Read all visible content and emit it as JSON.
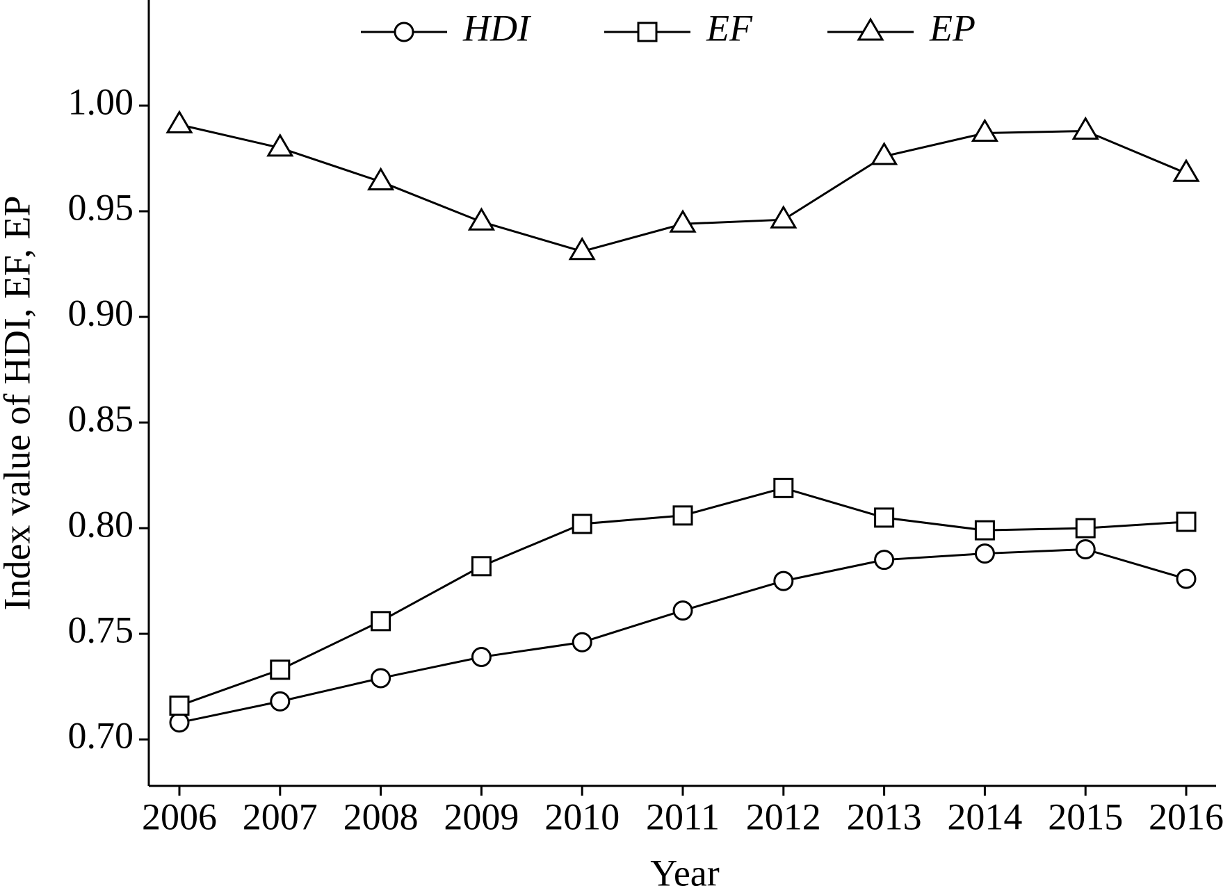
{
  "chart_data": {
    "type": "line",
    "categories": [
      "2006",
      "2007",
      "2008",
      "2009",
      "2010",
      "2011",
      "2012",
      "2013",
      "2014",
      "2015",
      "2016"
    ],
    "series": [
      {
        "name": "HDI",
        "color": "#000000",
        "marker": "circle",
        "values": [
          0.708,
          0.718,
          0.729,
          0.739,
          0.746,
          0.761,
          0.775,
          0.785,
          0.788,
          0.79,
          0.776
        ]
      },
      {
        "name": "EF",
        "color": "#000000",
        "marker": "square",
        "values": [
          0.716,
          0.733,
          0.756,
          0.782,
          0.802,
          0.806,
          0.819,
          0.805,
          0.799,
          0.8,
          0.803
        ]
      },
      {
        "name": "EP",
        "color": "#000000",
        "marker": "triangle",
        "values": [
          0.991,
          0.98,
          0.964,
          0.945,
          0.931,
          0.944,
          0.946,
          0.976,
          0.987,
          0.988,
          0.968
        ]
      }
    ],
    "x_label": "Year",
    "y_label": "Index value of HDI, EF, EP",
    "ylim": [
      0.678,
      1.05
    ],
    "yticks": [
      {
        "value": 0.7,
        "label": "0.70"
      },
      {
        "value": 0.75,
        "label": "0.75"
      },
      {
        "value": 0.8,
        "label": "0.80"
      },
      {
        "value": 0.85,
        "label": "0.85"
      },
      {
        "value": 0.9,
        "label": "0.90"
      },
      {
        "value": 0.95,
        "label": "0.95"
      },
      {
        "value": 1.0,
        "label": "1.00"
      }
    ],
    "grid": false,
    "legend": "top"
  }
}
